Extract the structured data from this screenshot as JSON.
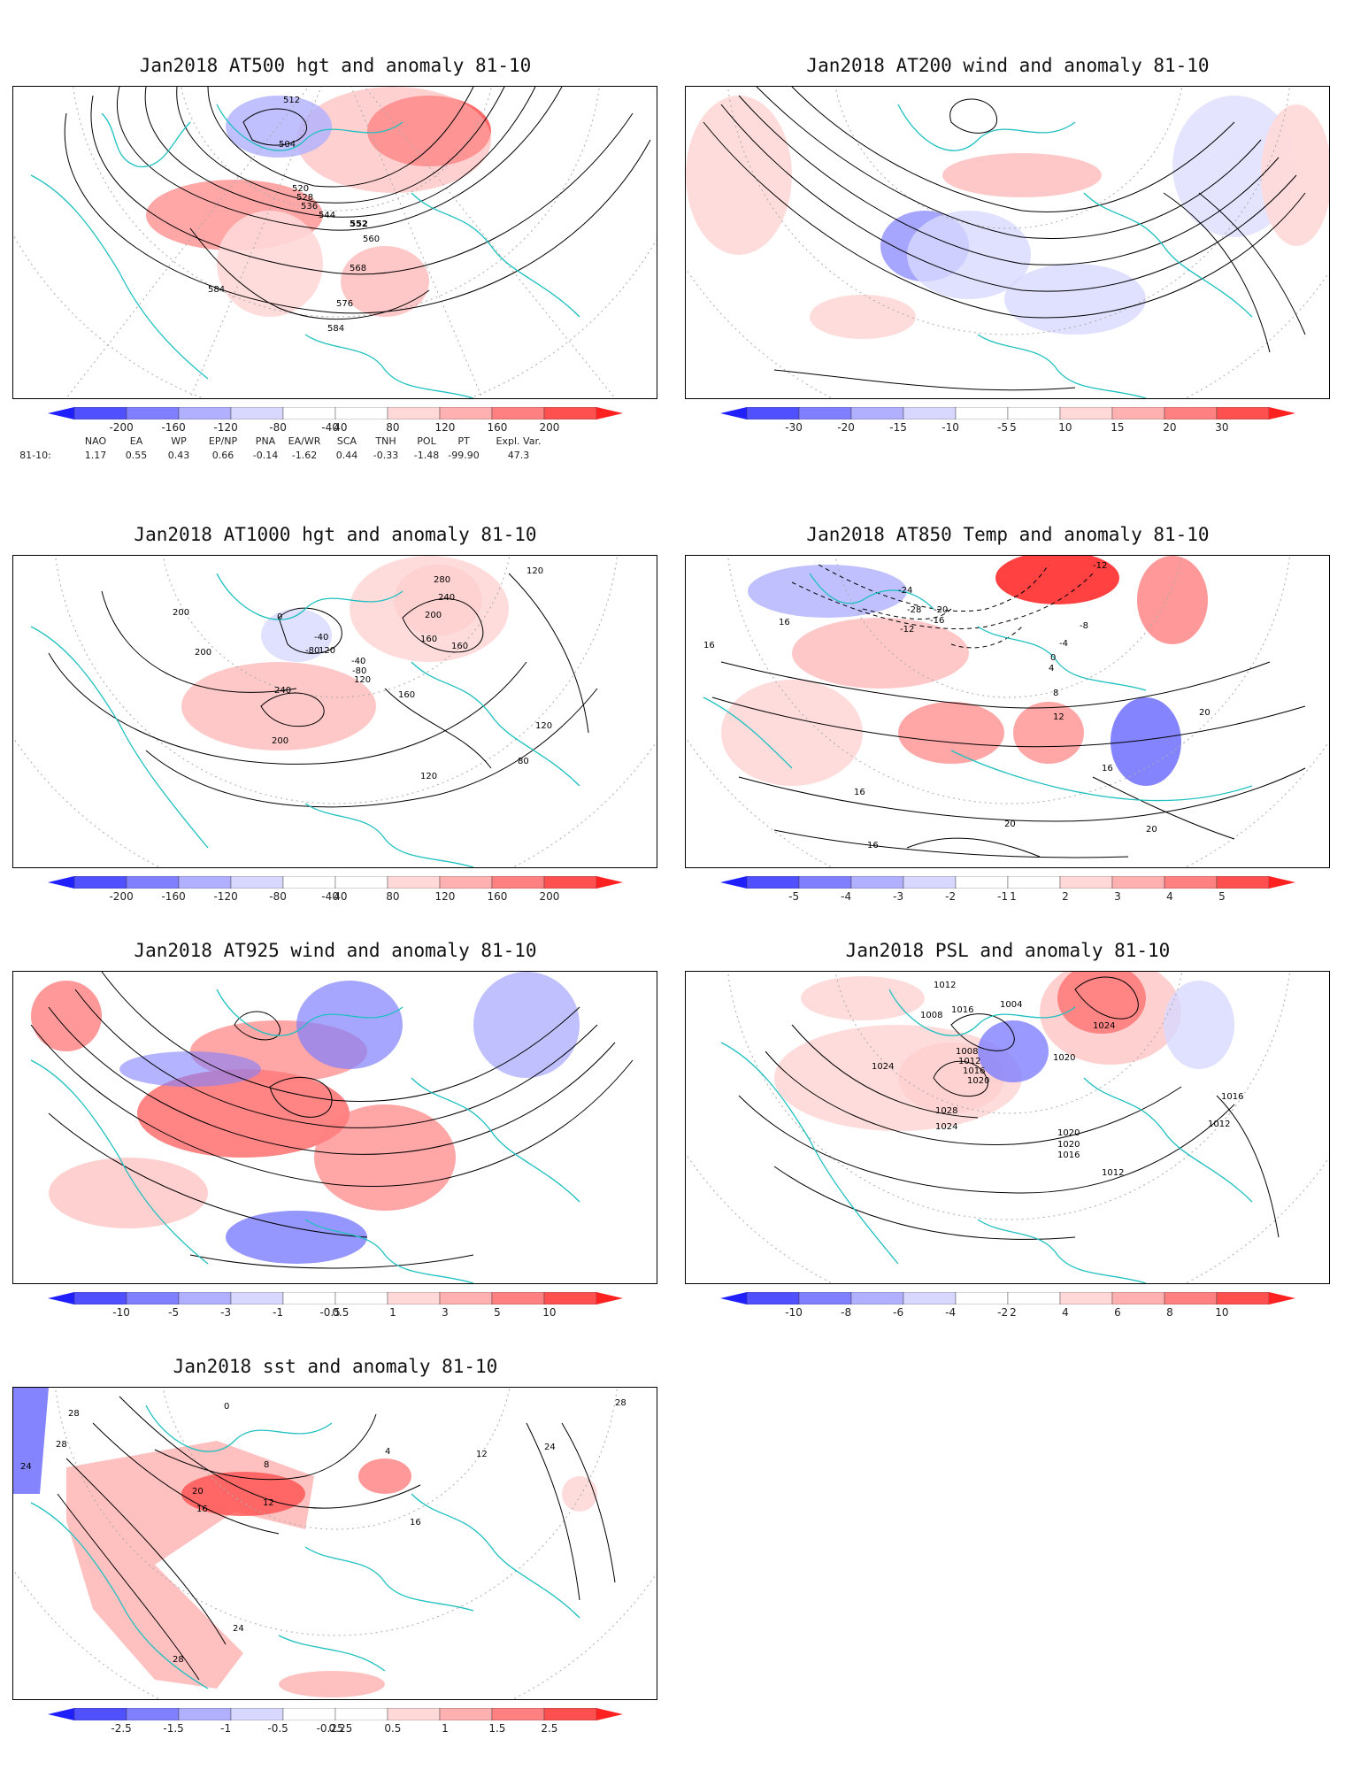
{
  "figure": {
    "panels": [
      {
        "id": "at500",
        "title": "Jan2018 AT500 hgt and anomaly 81-10",
        "contour_labels": [
          "504",
          "512",
          "520",
          "528",
          "536",
          "544",
          "552",
          "560",
          "568",
          "576",
          "584",
          "584"
        ],
        "colorbar_ticks": [
          "-200",
          "-160",
          "-120",
          "-80",
          "-40",
          "40",
          "80",
          "120",
          "160",
          "200"
        ]
      },
      {
        "id": "at200",
        "title": "Jan2018 AT200 wind and anomaly 81-10",
        "contour_labels": [],
        "colorbar_ticks": [
          "-30",
          "-20",
          "-15",
          "-10",
          "-5",
          "5",
          "10",
          "15",
          "20",
          "30"
        ]
      },
      {
        "id": "at1000",
        "title": "Jan2018 AT1000 hgt and anomaly 81-10",
        "contour_labels": [
          "120",
          "280",
          "240",
          "200",
          "200",
          "200",
          "160",
          "160",
          "120",
          "240",
          "200",
          "160",
          "120",
          "120",
          "80",
          "0",
          "-40",
          "-80",
          "-40",
          "-80",
          "120"
        ],
        "colorbar_ticks": [
          "-200",
          "-160",
          "-120",
          "-80",
          "-40",
          "40",
          "80",
          "120",
          "160",
          "200"
        ]
      },
      {
        "id": "at850",
        "title": "Jan2018 AT850 Temp and anomaly 81-10",
        "contour_labels": [
          "-12",
          "-24",
          "-28",
          "-20",
          "-16",
          "-12",
          "-8",
          "-4",
          "0",
          "4",
          "8",
          "12",
          "16",
          "16",
          "16",
          "16",
          "20",
          "20",
          "20",
          "16"
        ],
        "colorbar_ticks": [
          "-5",
          "-4",
          "-3",
          "-2",
          "-1",
          "1",
          "2",
          "3",
          "4",
          "5"
        ]
      },
      {
        "id": "at925",
        "title": "Jan2018 AT925 wind and anomaly 81-10",
        "contour_labels": [],
        "colorbar_ticks": [
          "-10",
          "-5",
          "-3",
          "-1",
          "-0.5",
          "0.5",
          "1",
          "3",
          "5",
          "10"
        ]
      },
      {
        "id": "psl",
        "title": "Jan2018 PSL and anomaly 81-10",
        "contour_labels": [
          "1012",
          "1016",
          "1008",
          "1004",
          "1024",
          "1008",
          "1012",
          "1016",
          "1020",
          "1020",
          "1024",
          "1028",
          "1024",
          "1020",
          "1016",
          "1012",
          "1016",
          "1012",
          "1020"
        ],
        "colorbar_ticks": [
          "-10",
          "-8",
          "-6",
          "-4",
          "-2",
          "2",
          "4",
          "6",
          "8",
          "10"
        ]
      },
      {
        "id": "sst",
        "title": "Jan2018 sst and anomaly 81-10",
        "contour_labels": [
          "28",
          "24",
          "0",
          "20",
          "16",
          "12",
          "8",
          "4",
          "16",
          "24",
          "28",
          "28",
          "24",
          "28",
          "12"
        ],
        "colorbar_ticks": [
          "-2.5",
          "-1.5",
          "-1",
          "-0.5",
          "-0.25",
          "0.25",
          "0.5",
          "1",
          "1.5",
          "2.5"
        ]
      }
    ],
    "index_table": {
      "headers": [
        "NAO",
        "EA",
        "WP",
        "EP/NP",
        "PNA",
        "EA/WR",
        "SCA",
        "TNH",
        "POL",
        "PT",
        "Expl. Var."
      ],
      "row_label": "81-10:",
      "values": [
        "1.17",
        "0.55",
        "0.43",
        "0.66",
        "-0.14",
        "-1.62",
        "0.44",
        "-0.33",
        "-1.48",
        "-99.90",
        "47.3"
      ]
    },
    "colors": {
      "coast": "#20c0c0",
      "contour": "#000000",
      "blue_scale": [
        "#2020ff",
        "#5050ff",
        "#8080ff",
        "#b0b0ff",
        "#d8d8ff"
      ],
      "red_scale": [
        "#ffd8d8",
        "#ffb0b0",
        "#ff8080",
        "#ff5050",
        "#ff2020"
      ]
    }
  }
}
